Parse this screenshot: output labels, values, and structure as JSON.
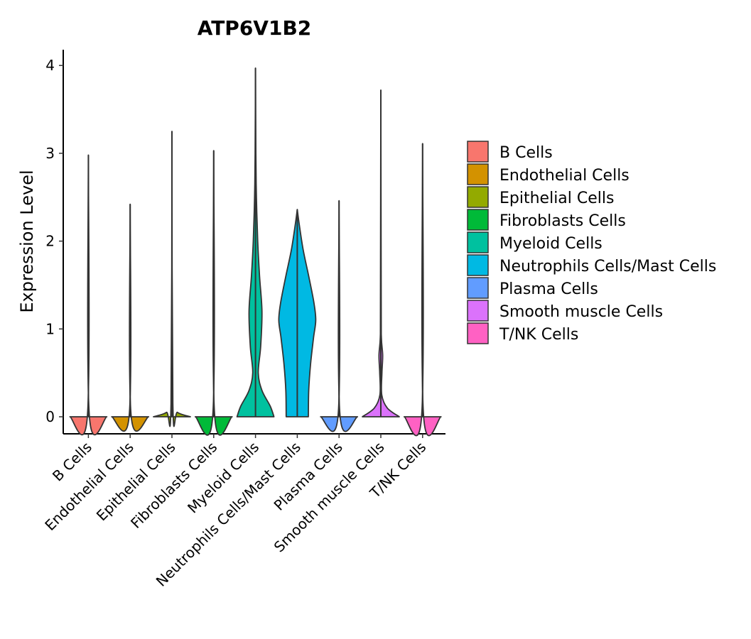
{
  "chart_data": {
    "type": "violin",
    "title": "ATP6V1B2",
    "xlabel": "",
    "ylabel": "Expression Level",
    "ylim": [
      -0.2,
      4.2
    ],
    "yticks": [
      0,
      1,
      2,
      3,
      4
    ],
    "categories": [
      "B Cells",
      "Endothelial Cells",
      "Epithelial Cells",
      "Fibroblasts Cells",
      "Myeloid Cells",
      "Neutrophils Cells/Mast Cells",
      "Plasma Cells",
      "Smooth muscle Cells",
      "T/NK Cells"
    ],
    "colors": [
      "#F8766D",
      "#D39200",
      "#93AA00",
      "#00BA38",
      "#00C19F",
      "#00B9E3",
      "#619CFF",
      "#DB72FB",
      "#FF61C3"
    ],
    "max_values": [
      2.98,
      2.42,
      3.25,
      3.03,
      3.97,
      2.36,
      2.46,
      3.72,
      3.11
    ],
    "density_profiles": [
      [
        [
          0,
          1.0
        ],
        [
          0.02,
          0.05
        ],
        [
          2.98,
          0.0
        ]
      ],
      [
        [
          0,
          1.0
        ],
        [
          0.02,
          0.05
        ],
        [
          2.42,
          0.0
        ]
      ],
      [
        [
          0,
          1.0
        ],
        [
          0.05,
          0.3
        ],
        [
          0.15,
          0.05
        ],
        [
          3.25,
          0.0
        ]
      ],
      [
        [
          0,
          1.0
        ],
        [
          0.02,
          0.05
        ],
        [
          3.03,
          0.0
        ]
      ],
      [
        [
          0,
          1.0
        ],
        [
          0.12,
          0.8
        ],
        [
          0.3,
          0.35
        ],
        [
          0.5,
          0.15
        ],
        [
          0.8,
          0.28
        ],
        [
          1.2,
          0.35
        ],
        [
          1.6,
          0.22
        ],
        [
          2.0,
          0.12
        ],
        [
          2.5,
          0.05
        ],
        [
          3.0,
          0.02
        ],
        [
          3.97,
          0.0
        ]
      ],
      [
        [
          0,
          0.6
        ],
        [
          0.3,
          0.62
        ],
        [
          0.6,
          0.72
        ],
        [
          0.9,
          0.88
        ],
        [
          1.1,
          1.0
        ],
        [
          1.3,
          0.9
        ],
        [
          1.6,
          0.62
        ],
        [
          1.9,
          0.32
        ],
        [
          2.2,
          0.1
        ],
        [
          2.36,
          0.0
        ]
      ],
      [
        [
          0,
          1.0
        ],
        [
          0.02,
          0.05
        ],
        [
          2.46,
          0.0
        ]
      ],
      [
        [
          0,
          1.0
        ],
        [
          0.1,
          0.35
        ],
        [
          0.25,
          0.05
        ],
        [
          0.5,
          0.06
        ],
        [
          0.7,
          0.1
        ],
        [
          0.9,
          0.03
        ],
        [
          1.3,
          0.02
        ],
        [
          3.72,
          0.0
        ]
      ],
      [
        [
          0,
          1.0
        ],
        [
          0.02,
          0.05
        ],
        [
          3.11,
          0.0
        ]
      ]
    ],
    "legend_position": "right"
  }
}
